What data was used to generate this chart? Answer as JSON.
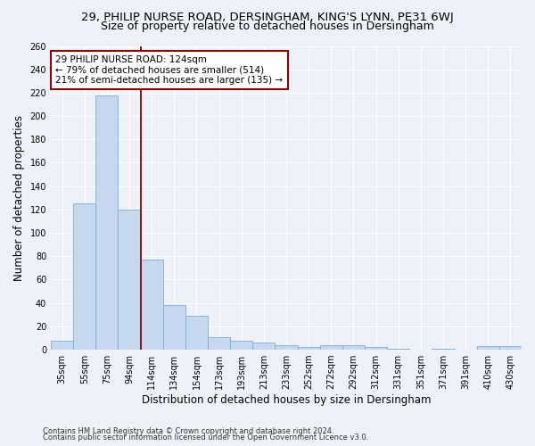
{
  "title_line1": "29, PHILIP NURSE ROAD, DERSINGHAM, KING'S LYNN, PE31 6WJ",
  "title_line2": "Size of property relative to detached houses in Dersingham",
  "xlabel": "Distribution of detached houses by size in Dersingham",
  "ylabel": "Number of detached properties",
  "categories": [
    "35sqm",
    "55sqm",
    "75sqm",
    "94sqm",
    "114sqm",
    "134sqm",
    "154sqm",
    "173sqm",
    "193sqm",
    "213sqm",
    "233sqm",
    "252sqm",
    "272sqm",
    "292sqm",
    "312sqm",
    "331sqm",
    "351sqm",
    "371sqm",
    "391sqm",
    "410sqm",
    "430sqm"
  ],
  "values": [
    8,
    125,
    218,
    120,
    77,
    38,
    29,
    11,
    8,
    6,
    4,
    2,
    4,
    4,
    2,
    1,
    0,
    1,
    0,
    3,
    3
  ],
  "bar_color": "#c5d8ee",
  "bar_edge_color": "#7aaed6",
  "vline_pos": 3.5,
  "vline_color": "#8b0000",
  "annotation_text": "29 PHILIP NURSE ROAD: 124sqm\n← 79% of detached houses are smaller (514)\n21% of semi-detached houses are larger (135) →",
  "annotation_box_color": "#ffffff",
  "annotation_box_edge": "#8b0000",
  "ylim": [
    0,
    260
  ],
  "yticks": [
    0,
    20,
    40,
    60,
    80,
    100,
    120,
    140,
    160,
    180,
    200,
    220,
    240,
    260
  ],
  "footer_line1": "Contains HM Land Registry data © Crown copyright and database right 2024.",
  "footer_line2": "Contains public sector information licensed under the Open Government Licence v3.0.",
  "bg_color": "#eef2f8",
  "plot_bg_color": "#eef2f8",
  "grid_color": "#ffffff",
  "title_fontsize": 9.5,
  "subtitle_fontsize": 9,
  "tick_fontsize": 7,
  "label_fontsize": 8.5,
  "annot_fontsize": 7.5,
  "footer_fontsize": 6
}
